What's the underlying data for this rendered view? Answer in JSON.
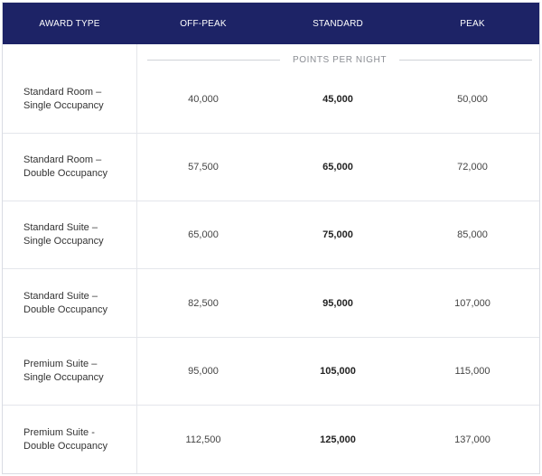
{
  "header": {
    "award_type": "AWARD TYPE",
    "off_peak": "OFF-PEAK",
    "standard": "STANDARD",
    "peak": "PEAK"
  },
  "subheader": "POINTS PER NIGHT",
  "rows": [
    {
      "line1": "Standard Room –",
      "line2": "Single Occupancy",
      "off_peak": "40,000",
      "standard": "45,000",
      "peak": "50,000"
    },
    {
      "line1": "Standard Room –",
      "line2": "Double Occupancy",
      "off_peak": "57,500",
      "standard": "65,000",
      "peak": "72,000"
    },
    {
      "line1": "Standard Suite –",
      "line2": "Single Occupancy",
      "off_peak": "65,000",
      "standard": "75,000",
      "peak": "85,000"
    },
    {
      "line1": "Standard Suite  –",
      "line2": "Double Occupancy",
      "off_peak": "82,500",
      "standard": "95,000",
      "peak": "107,000"
    },
    {
      "line1": "Premium Suite –",
      "line2": "Single Occupancy",
      "off_peak": "95,000",
      "standard": "105,000",
      "peak": "115,000"
    },
    {
      "line1": "Premium Suite -",
      "line2": "Double Occupancy",
      "off_peak": "112,500",
      "standard": "125,000",
      "peak": "137,000"
    }
  ]
}
